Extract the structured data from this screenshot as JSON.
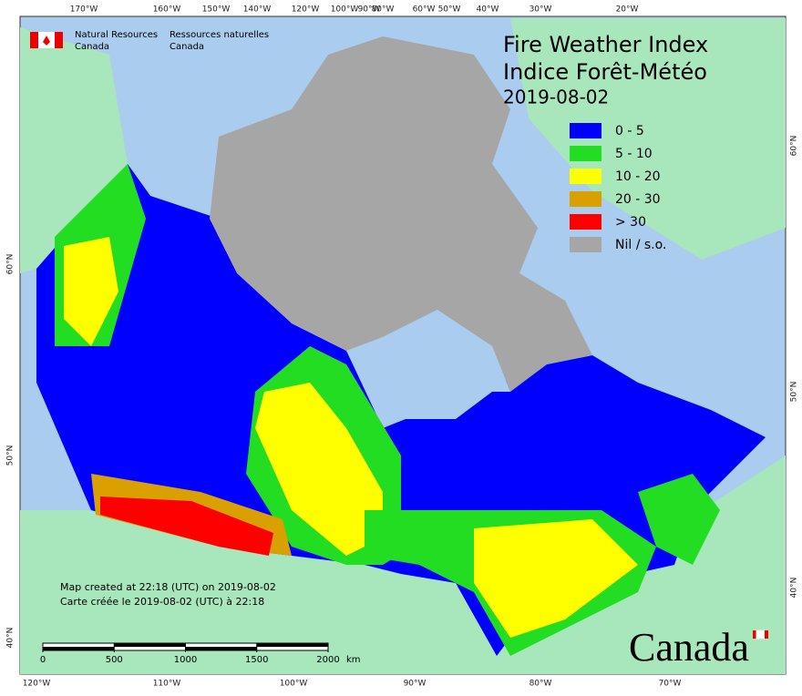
{
  "header": {
    "agency_en": [
      "Natural Resources",
      "Canada"
    ],
    "agency_fr": [
      "Ressources naturelles",
      "Canada"
    ]
  },
  "title": [
    "Fire Weather Index",
    "Indice Forêt-Météo"
  ],
  "date": "2019-08-02",
  "legend": [
    {
      "label": "0 - 5",
      "color": "#0000ff"
    },
    {
      "label": "5 - 10",
      "color": "#22dd22"
    },
    {
      "label": "10 - 20",
      "color": "#ffff00"
    },
    {
      "label": "20 - 30",
      "color": "#d9a000"
    },
    {
      "label": "> 30",
      "color": "#ff0000"
    },
    {
      "label": "Nil / s.o.",
      "color": "#a6a6a6"
    }
  ],
  "notes": [
    "Map created at 22:18 (UTC) on 2019-08-02",
    "Carte créée le 2019-08-02 (UTC) à 22:18"
  ],
  "scale_bar": {
    "ticks": [
      0,
      500,
      1000,
      1500,
      2000
    ],
    "unit": "km"
  },
  "graticule": {
    "top": [
      "170°W",
      "160°W",
      "150°W",
      "140°W",
      "120°W",
      "100°W",
      "90°W",
      "80°W",
      "60°W",
      "50°W",
      "40°W",
      "30°W",
      "20°W"
    ],
    "bottom": [
      "120°W",
      "110°W",
      "100°W",
      "90°W",
      "80°W",
      "70°W"
    ],
    "left": [
      "60°N",
      "50°N",
      "40°N"
    ],
    "right": [
      "60°N",
      "50°N",
      "40°N"
    ]
  },
  "wordmark": "Canada"
}
